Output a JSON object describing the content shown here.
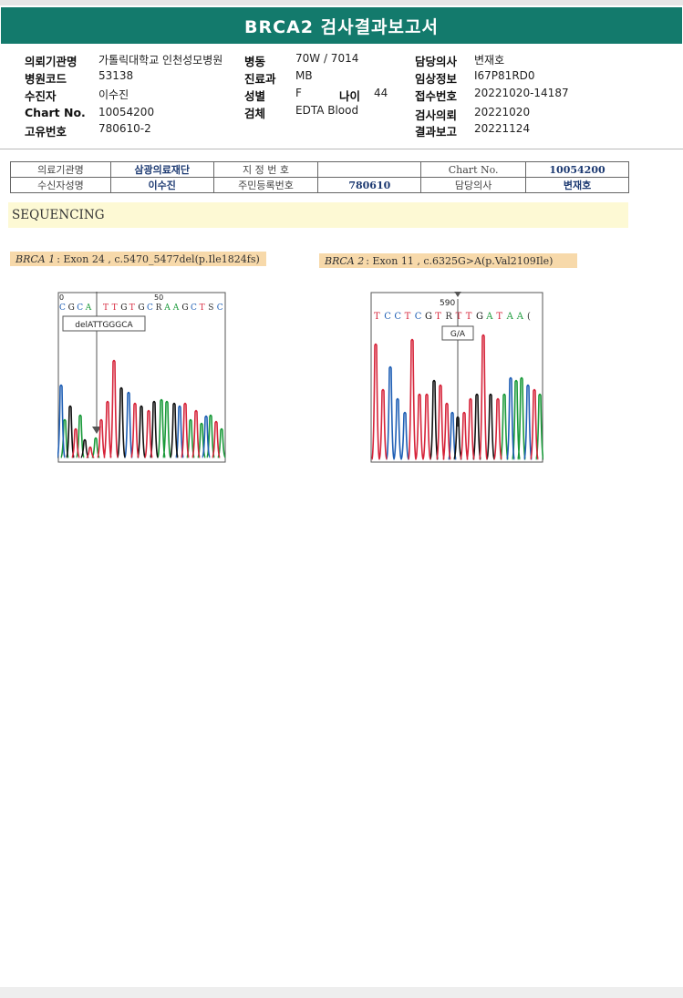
{
  "report": {
    "title": "BRCA2 검사결과보고서"
  },
  "patient_info": {
    "col1": [
      {
        "label": "의뢰기관명",
        "value": "가톨릭대학교 인천성모병원"
      },
      {
        "label": "병원코드",
        "value": "53138"
      },
      {
        "label": "수진자",
        "value": "이수진"
      },
      {
        "label": "Chart No.",
        "value": "10054200"
      },
      {
        "label": "고유번호",
        "value": "780610-2"
      }
    ],
    "col2": [
      {
        "label": "병동",
        "value": "70W / 7014"
      },
      {
        "label": "진료과",
        "value": "MB"
      },
      {
        "label": "성별",
        "value": "F"
      },
      {
        "label": "검체",
        "value": "EDTA Blood"
      }
    ],
    "age": {
      "label": "나이",
      "value": "44"
    },
    "col3": [
      {
        "label": "담당의사",
        "value": "변재호"
      },
      {
        "label": "임상정보",
        "value": "I67P81RD0"
      },
      {
        "label": "접수번호",
        "value": "20221020-14187"
      },
      {
        "label": "검사의뢰",
        "value": "20221020"
      },
      {
        "label": "결과보고",
        "value": "20221124"
      }
    ]
  },
  "id_table": {
    "row1": [
      "의료기관명",
      "삼광의료재단",
      "지 정 번 호",
      "",
      "Chart No.",
      "10054200"
    ],
    "row2": [
      "수신자성명",
      "이수진",
      "주민등록번호",
      "780610",
      "담당의사",
      "변재호"
    ]
  },
  "section": {
    "title": "SEQUENCING"
  },
  "variants": [
    {
      "gene": "BRCA 1",
      "detail": ": Exon 24 , c.5470_5477del(p.Ile1824fs)",
      "position_number": "50",
      "position_start": "0",
      "sequence": [
        "C",
        "G",
        "C",
        "A",
        " ",
        "T",
        "T",
        "G",
        "T",
        "G",
        "C",
        "R",
        "A",
        "A",
        "G",
        "C",
        "T",
        "S",
        "C"
      ],
      "callout": "delATTGGGCA"
    },
    {
      "gene": "BRCA 2",
      "detail": ": Exon 11 , c.6325G>A(p.Val2109Ile)",
      "position_number": "590",
      "sequence": [
        "T",
        "C",
        "C",
        "T",
        "C",
        "G",
        "T",
        "R",
        "T",
        "T",
        "G",
        "A",
        "T",
        "A",
        "A",
        "("
      ],
      "callout": "G/A"
    }
  ],
  "colors": {
    "title_bar": "#137a6c",
    "section_bg": "#fdf9d4",
    "variant_label_bg": "#f7d9aa",
    "trace_A": "#1a9a3a",
    "trace_C": "#1f5fb5",
    "trace_G": "#111111",
    "trace_T": "#d6243a"
  }
}
